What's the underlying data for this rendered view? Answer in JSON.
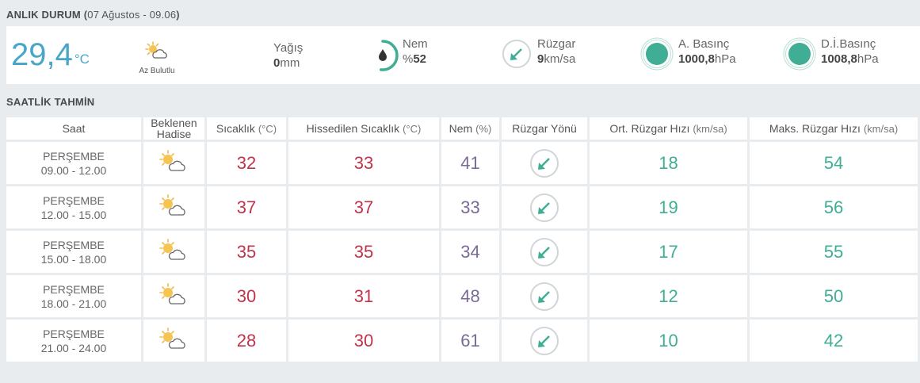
{
  "current": {
    "title": "ANLIK DURUM",
    "date": "07 Ağustos - 09.06",
    "temperature": "29,4",
    "temperature_unit": "°C",
    "condition": "Az Bulutlu",
    "condition_icon": "partly-cloudy-icon",
    "precip_label": "Yağış",
    "precip_value": "0",
    "precip_unit": "mm",
    "humidity_label": "Nem",
    "humidity_prefix": "%",
    "humidity_value": "52",
    "humidity_level": 0.52,
    "wind_label": "Rüzgar",
    "wind_value": "9",
    "wind_unit": "km/sa",
    "pressure_label": "A. Basınç",
    "pressure_value": "1000,8",
    "pressure_unit": "hPa",
    "sea_pressure_label": "D.İ.Basınç",
    "sea_pressure_value": "1008,8",
    "sea_pressure_unit": "hPa"
  },
  "hourly": {
    "title": "SAATLİK TAHMİN",
    "headers": {
      "time": "Saat",
      "condition_line1": "Beklenen",
      "condition_line2": "Hadise",
      "temp": "Sıcaklık",
      "temp_unit": "(°C)",
      "feels": "Hissedilen Sıcaklık",
      "feels_unit": "(°C)",
      "humidity": "Nem",
      "humidity_unit": "(%)",
      "wind_dir": "Rüzgar Yönü",
      "avg_wind": "Ort. Rüzgar Hızı",
      "avg_wind_unit": "(km/sa)",
      "max_wind": "Maks. Rüzgar Hızı",
      "max_wind_unit": "(km/sa)"
    },
    "rows": [
      {
        "day": "PERŞEMBE",
        "time": "09.00 - 12.00",
        "icon": "partly-cloudy-icon",
        "temp": "32",
        "feels": "33",
        "humidity": "41",
        "avg_wind": "18",
        "max_wind": "54"
      },
      {
        "day": "PERŞEMBE",
        "time": "12.00 - 15.00",
        "icon": "partly-cloudy-icon",
        "temp": "37",
        "feels": "37",
        "humidity": "33",
        "avg_wind": "19",
        "max_wind": "56"
      },
      {
        "day": "PERŞEMBE",
        "time": "15.00 - 18.00",
        "icon": "partly-cloudy-icon",
        "temp": "35",
        "feels": "35",
        "humidity": "34",
        "avg_wind": "17",
        "max_wind": "55"
      },
      {
        "day": "PERŞEMBE",
        "time": "18.00 - 21.00",
        "icon": "partly-cloudy-icon",
        "temp": "30",
        "feels": "31",
        "humidity": "48",
        "avg_wind": "12",
        "max_wind": "50"
      },
      {
        "day": "PERŞEMBE",
        "time": "21.00 - 24.00",
        "icon": "partly-cloudy-icon",
        "temp": "28",
        "feels": "30",
        "humidity": "61",
        "avg_wind": "10",
        "max_wind": "42"
      }
    ]
  },
  "colors": {
    "temperature": "#4aa6c8",
    "hot": "#c0344b",
    "humidity": "#7a6b96",
    "wind": "#3fae94",
    "background": "#e8ecef"
  }
}
